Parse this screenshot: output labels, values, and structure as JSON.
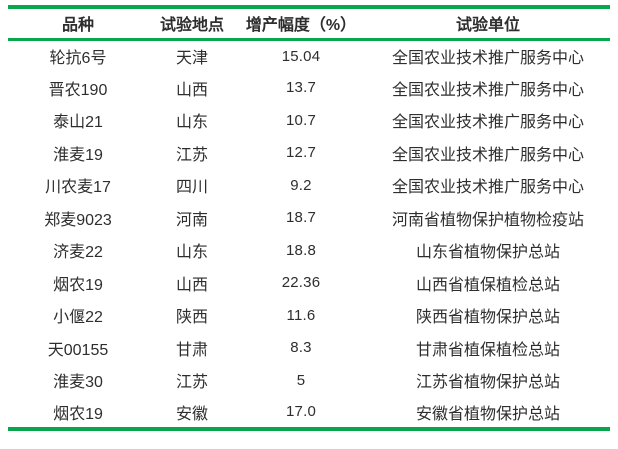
{
  "table": {
    "headers": [
      "品种",
      "试验地点",
      "增产幅度（%）",
      "试验单位"
    ],
    "rows": [
      {
        "variety": "轮抗6号",
        "location": "天津",
        "increase": "15.04",
        "unit": "全国农业技术推广服务中心"
      },
      {
        "variety": "晋农190",
        "location": "山西",
        "increase": "13.7",
        "unit": "全国农业技术推广服务中心"
      },
      {
        "variety": "泰山21",
        "location": "山东",
        "increase": "10.7",
        "unit": "全国农业技术推广服务中心"
      },
      {
        "variety": "淮麦19",
        "location": "江苏",
        "increase": "12.7",
        "unit": "全国农业技术推广服务中心"
      },
      {
        "variety": "川农麦17",
        "location": "四川",
        "increase": "9.2",
        "unit": "全国农业技术推广服务中心"
      },
      {
        "variety": "郑麦9023",
        "location": "河南",
        "increase": "18.7",
        "unit": "河南省植物保护植物检疫站"
      },
      {
        "variety": "济麦22",
        "location": "山东",
        "increase": "18.8",
        "unit": "山东省植物保护总站"
      },
      {
        "variety": "烟农19",
        "location": "山西",
        "increase": "22.36",
        "unit": "山西省植保植检总站"
      },
      {
        "variety": "小偃22",
        "location": "陕西",
        "increase": "11.6",
        "unit": "陕西省植物保护总站"
      },
      {
        "variety": "天00155",
        "location": "甘肃",
        "increase": "8.3",
        "unit": "甘肃省植保植检总站"
      },
      {
        "variety": "淮麦30",
        "location": "江苏",
        "increase": "5",
        "unit": "江苏省植物保护总站"
      },
      {
        "variety": "烟农19",
        "location": "安徽",
        "increase": "17.0",
        "unit": "安徽省植物保护总站"
      }
    ],
    "colors": {
      "rule_green": "#0aa64e",
      "text": "#2e2e2e"
    }
  }
}
